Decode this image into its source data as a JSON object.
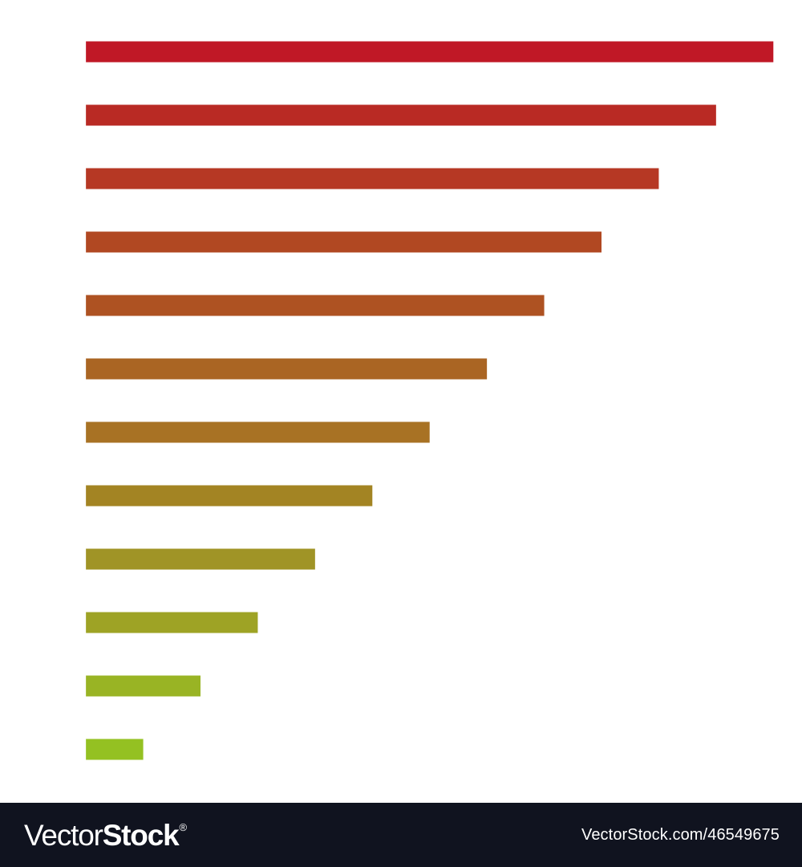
{
  "chart_data": {
    "type": "bar",
    "orientation": "horizontal",
    "values": [
      12,
      11,
      10,
      9,
      8,
      7,
      6,
      5,
      4,
      3,
      2,
      1
    ],
    "xlim": [
      -1.5,
      12.5
    ],
    "grid": false,
    "colors": [
      "#c01826",
      "#b92a24",
      "#b63824",
      "#b14822",
      "#ae5222",
      "#aa6523",
      "#a87224",
      "#a38423",
      "#a09426",
      "#9ea325",
      "#99b424",
      "#94c122"
    ]
  },
  "footer": {
    "background": "#10131f",
    "text_color": "#ffffff",
    "logo_light": "Vector",
    "logo_bold": "Stock",
    "logo_reg": "®",
    "url": "VectorStock.com/46549675"
  }
}
